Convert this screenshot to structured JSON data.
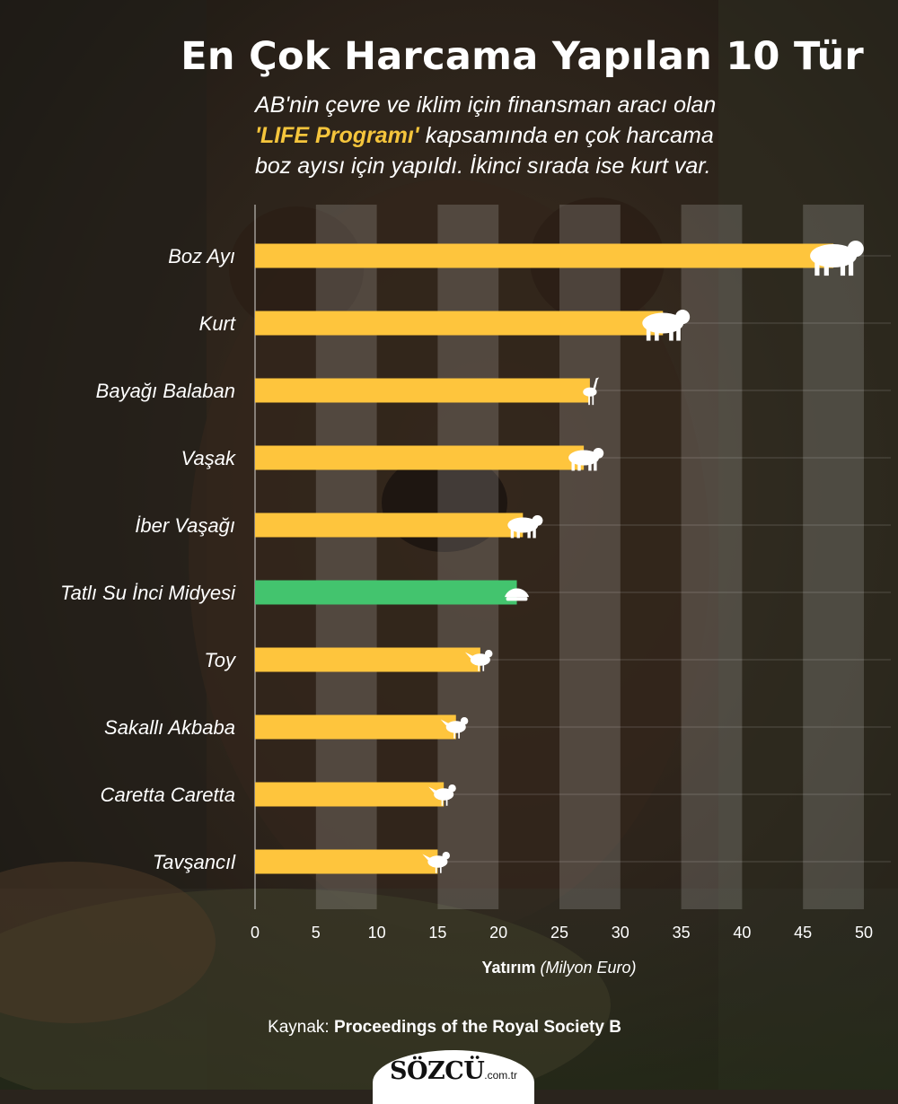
{
  "title": "En Çok Harcama Yapılan 10 Tür",
  "subtitle": {
    "line1": "AB'nin çevre ve iklim için finansman aracı olan",
    "highlight": "'LIFE Programı'",
    "line2_rest": " kapsamında en çok harcama",
    "line3": "boz ayısı için yapıldı. İkinci sırada ise kurt var."
  },
  "colors": {
    "bar": "#fec53d",
    "bar_highlight": "#43c46e",
    "stripe": "rgba(255,255,255,0.16)",
    "text": "#ffffff"
  },
  "chart_data": {
    "type": "bar",
    "orientation": "horizontal",
    "categories": [
      "Boz Ayı",
      "Kurt",
      "Bayağı Balaban",
      "Vaşak",
      "İber Vaşağı",
      "Tatlı Su İnci Midyesi",
      "Toy",
      "Sakallı Akbaba",
      "Caretta Caretta",
      "Tavşancıl"
    ],
    "values": [
      47.5,
      33.5,
      27.5,
      27,
      22,
      21.5,
      18.5,
      16.5,
      15.5,
      15
    ],
    "highlight_index": 5,
    "icons": [
      "bear-icon",
      "wolf-icon",
      "heron-icon",
      "lynx-icon",
      "iberian-lynx-icon",
      "shell-icon",
      "bustard-icon",
      "vulture-icon",
      "turtle-icon",
      "eagle-icon"
    ],
    "x_ticks": [
      "0",
      "5",
      "10",
      "15",
      "20",
      "25",
      "30",
      "35",
      "40",
      "45",
      "50"
    ],
    "xlim": [
      0,
      50
    ],
    "xlabel_bold": "Yatırım",
    "xlabel_italic": "(Milyon Euro)",
    "grid": "alternating vertical bands"
  },
  "source": {
    "prefix": "Kaynak:",
    "name": "Proceedings of the Royal Society B"
  },
  "logo": {
    "brand": "SÖZCÜ",
    "domain": ".com.tr"
  }
}
